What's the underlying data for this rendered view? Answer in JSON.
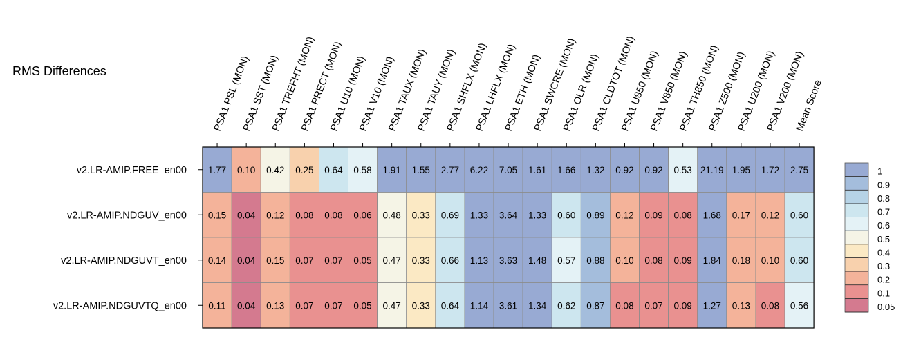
{
  "chart_data": {
    "type": "heatmap",
    "title": "RMS Differences",
    "columns": [
      "PSA1 PSL (MON)",
      "PSA1 SST (MON)",
      "PSA1 TREFHT (MON)",
      "PSA1 PRECT (MON)",
      "PSA1 U10 (MON)",
      "PSA1 V10 (MON)",
      "PSA1 TAUX (MON)",
      "PSA1 TAUY (MON)",
      "PSA1 SHFLX (MON)",
      "PSA1 LHFLX (MON)",
      "PSA1 ETH (MON)",
      "PSA1 SWCRE (MON)",
      "PSA1 OLR (MON)",
      "PSA1 CLDTOT (MON)",
      "PSA1 U850 (MON)",
      "PSA1 V850 (MON)",
      "PSA1 TH850 (MON)",
      "PSA1 Z500 (MON)",
      "PSA1 U200 (MON)",
      "PSA1 V200 (MON)",
      "Mean Score"
    ],
    "rows": [
      "v2.LR-AMIP.FREE_en00",
      "v2.LR-AMIP.NDGUV_en00",
      "v2.LR-AMIP.NDGUVT_en00",
      "v2.LR-AMIP.NDGUVTQ_en00"
    ],
    "values": [
      [
        "1.77",
        "0.10",
        "0.42",
        "0.25",
        "0.64",
        "0.58",
        "1.91",
        "1.55",
        "2.77",
        "6.22",
        "7.05",
        "1.61",
        "1.66",
        "1.32",
        "0.92",
        "0.92",
        "0.53",
        "21.19",
        "1.95",
        "1.72",
        "2.75"
      ],
      [
        "0.15",
        "0.04",
        "0.12",
        "0.08",
        "0.08",
        "0.06",
        "0.48",
        "0.33",
        "0.69",
        "1.33",
        "3.64",
        "1.33",
        "0.60",
        "0.89",
        "0.12",
        "0.09",
        "0.08",
        "1.68",
        "0.17",
        "0.12",
        "0.60"
      ],
      [
        "0.14",
        "0.04",
        "0.15",
        "0.07",
        "0.07",
        "0.05",
        "0.47",
        "0.33",
        "0.66",
        "1.13",
        "3.63",
        "1.48",
        "0.57",
        "0.88",
        "0.10",
        "0.08",
        "0.09",
        "1.84",
        "0.18",
        "0.10",
        "0.60"
      ],
      [
        "0.11",
        "0.04",
        "0.13",
        "0.07",
        "0.07",
        "0.05",
        "0.47",
        "0.33",
        "0.64",
        "1.14",
        "3.61",
        "1.34",
        "0.62",
        "0.87",
        "0.08",
        "0.07",
        "0.09",
        "1.27",
        "0.13",
        "0.08",
        "0.56"
      ]
    ],
    "colorbar": {
      "ticks": [
        "1",
        "0.9",
        "0.8",
        "0.7",
        "0.6",
        "0.5",
        "0.4",
        "0.3",
        "0.2",
        "0.1",
        "0.05"
      ],
      "thresholds": [
        0,
        0.05,
        0.1,
        0.2,
        0.3,
        0.4,
        0.5,
        0.6,
        0.7,
        0.8,
        0.9,
        1.0
      ],
      "colors": [
        "#d47a8f",
        "#e99190",
        "#f4b39a",
        "#f8d1ad",
        "#fbe9c4",
        "#f5f4e6",
        "#e4f2f6",
        "#cde6ef",
        "#b6d3e6",
        "#a4bddc",
        "#98aad3"
      ]
    },
    "grid": true,
    "legend_position": "right"
  }
}
